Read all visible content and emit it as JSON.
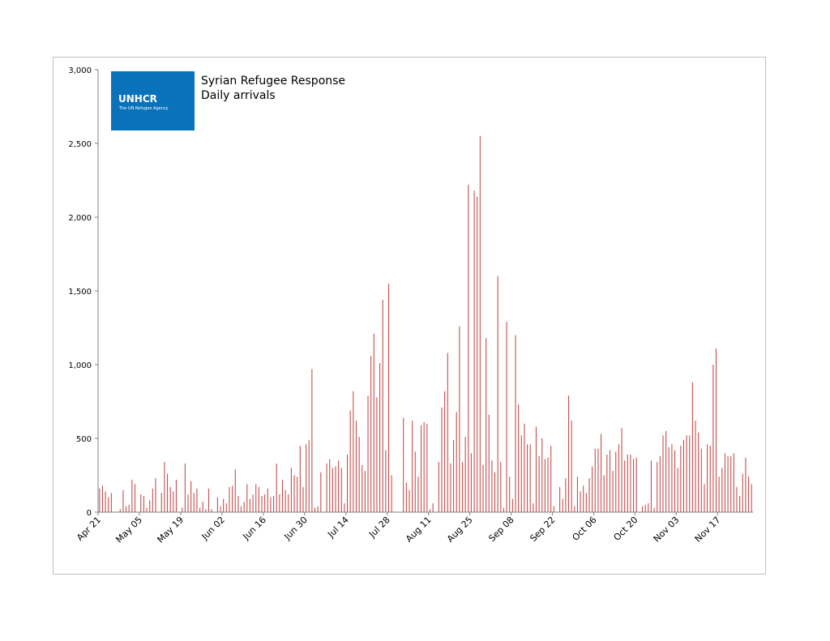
{
  "logo": {
    "wordmark": "UNHCR",
    "tagline": "The UN Refugee Agency"
  },
  "chart_data": {
    "type": "bar",
    "title": "Syrian Refugee Response",
    "subtitle": "Daily arrivals",
    "xlabel": "",
    "ylabel": "",
    "ylim": [
      0,
      3000
    ],
    "y_ticks": [
      "0",
      "500",
      "1,000",
      "1,500",
      "2,000",
      "2,500",
      "3,000"
    ],
    "y_tick_values": [
      0,
      500,
      1000,
      1500,
      2000,
      2500,
      3000
    ],
    "x_ticks": [
      "Apr 21",
      "May 05",
      "May 19",
      "Jun 02",
      "Jun 16",
      "Jun 30",
      "Jul 14",
      "Jul 28",
      "Aug 11",
      "Aug 25",
      "Sep 08",
      "Sep 22",
      "Oct 06",
      "Oct 20",
      "Nov 03",
      "Nov 17"
    ],
    "x_tick_day_index": [
      0,
      14,
      28,
      42,
      56,
      70,
      84,
      98,
      112,
      126,
      140,
      154,
      168,
      182,
      196,
      210
    ],
    "grid": false,
    "legend": "none",
    "bar_color": "#c0504d",
    "values": [
      160,
      180,
      140,
      100,
      130,
      0,
      0,
      20,
      150,
      40,
      50,
      220,
      190,
      0,
      120,
      110,
      30,
      80,
      160,
      230,
      0,
      130,
      340,
      260,
      170,
      140,
      220,
      0,
      30,
      330,
      120,
      210,
      130,
      160,
      30,
      70,
      20,
      160,
      20,
      0,
      100,
      40,
      90,
      60,
      170,
      180,
      290,
      110,
      40,
      70,
      190,
      90,
      120,
      190,
      170,
      110,
      120,
      160,
      100,
      110,
      330,
      120,
      220,
      150,
      120,
      300,
      250,
      240,
      450,
      170,
      460,
      490,
      970,
      30,
      40,
      270,
      0,
      330,
      360,
      300,
      310,
      350,
      300,
      60,
      390,
      690,
      820,
      620,
      510,
      320,
      280,
      790,
      1060,
      1210,
      780,
      1010,
      1440,
      420,
      1550,
      250,
      0,
      0,
      0,
      640,
      200,
      150,
      620,
      410,
      240,
      590,
      610,
      600,
      20,
      60,
      0,
      340,
      710,
      820,
      1080,
      330,
      490,
      680,
      1260,
      340,
      510,
      2220,
      400,
      2180,
      2140,
      2550,
      320,
      1180,
      660,
      350,
      270,
      1600,
      340,
      30,
      1290,
      240,
      90,
      1200,
      730,
      520,
      600,
      460,
      460,
      60,
      580,
      380,
      500,
      360,
      370,
      450,
      40,
      0,
      170,
      90,
      230,
      790,
      620,
      40,
      240,
      140,
      180,
      130,
      230,
      310,
      430,
      430,
      530,
      250,
      390,
      420,
      280,
      410,
      460,
      570,
      350,
      390,
      390,
      360,
      370,
      0,
      40,
      50,
      60,
      350,
      30,
      340,
      380,
      520,
      550,
      440,
      460,
      420,
      300,
      450,
      490,
      520,
      520,
      880,
      620,
      540,
      430,
      190,
      460,
      450,
      1000,
      1110,
      240,
      300,
      400,
      380,
      380,
      400,
      170,
      110,
      260,
      370,
      240,
      190
    ]
  }
}
